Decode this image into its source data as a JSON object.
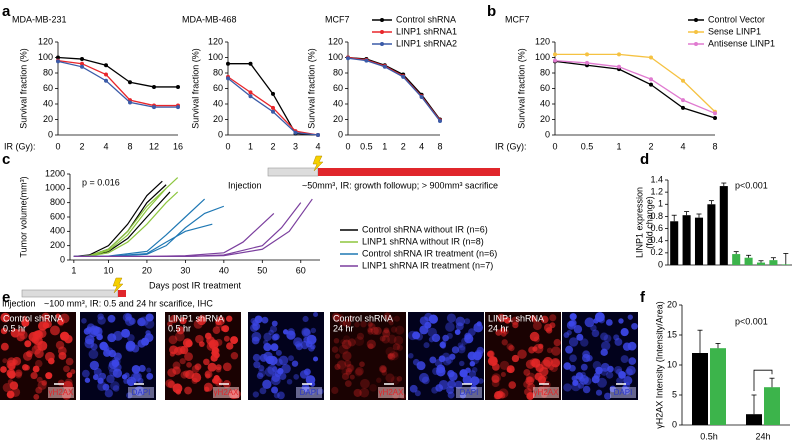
{
  "panel_labels": [
    "a",
    "b",
    "c",
    "d",
    "e",
    "f"
  ],
  "chart_data": [
    {
      "type": "line",
      "title": "MDA-MB-231",
      "ylabel": "Survival fraction (%)",
      "xlabel": "IR (Gy):",
      "categories": [
        "0",
        "2",
        "4",
        "8",
        "12",
        "16"
      ],
      "ylim": [
        0,
        120
      ],
      "yticks": [
        0,
        20,
        40,
        60,
        80,
        100,
        120
      ],
      "series": [
        {
          "name": "Control shRNA",
          "color": "#000000",
          "values": [
            100,
            98,
            90,
            68,
            62,
            62
          ]
        },
        {
          "name": "LINP1 shRNA1",
          "color": "#e8262b",
          "values": [
            96,
            92,
            78,
            45,
            38,
            38
          ]
        },
        {
          "name": "LINP1 shRNA2",
          "color": "#3b5ba8",
          "values": [
            95,
            88,
            70,
            42,
            36,
            36
          ]
        }
      ]
    },
    {
      "type": "line",
      "title": "MDA-MB-468",
      "ylabel": "Survival fraction (%)",
      "categories": [
        "0",
        "1",
        "2",
        "3",
        "4"
      ],
      "ylim": [
        0,
        120
      ],
      "yticks": [
        0,
        20,
        40,
        60,
        80,
        100,
        120
      ],
      "series": [
        {
          "name": "Control shRNA",
          "color": "#000000",
          "values": [
            92,
            92,
            53,
            2,
            0
          ]
        },
        {
          "name": "LINP1 shRNA1",
          "color": "#e8262b",
          "values": [
            75,
            55,
            35,
            5,
            0
          ]
        },
        {
          "name": "LINP1 shRNA2",
          "color": "#3b5ba8",
          "values": [
            73,
            50,
            30,
            3,
            0
          ]
        }
      ]
    },
    {
      "type": "line",
      "title": "MCF7",
      "ylabel": "Survival fraction (%)",
      "legend": "top-right",
      "categories": [
        "0",
        "0.5",
        "1",
        "2",
        "4",
        "8"
      ],
      "ylim": [
        0,
        120
      ],
      "yticks": [
        0,
        20,
        40,
        60,
        80,
        100,
        120
      ],
      "series": [
        {
          "name": "Control shRNA",
          "color": "#000000",
          "values": [
            100,
            98,
            90,
            78,
            52,
            20
          ]
        },
        {
          "name": "LINP1 shRNA1",
          "color": "#e8262b",
          "values": [
            100,
            97,
            89,
            76,
            50,
            19
          ]
        },
        {
          "name": "LINP1 shRNA2",
          "color": "#3b5ba8",
          "values": [
            99,
            96,
            88,
            75,
            49,
            18
          ]
        }
      ]
    },
    {
      "type": "line",
      "title": "MCF7",
      "ylabel": "Survival fraction (%)",
      "xlabel": "IR (Gy):",
      "legend": "top-right",
      "categories": [
        "0",
        "0.5",
        "1",
        "2",
        "4",
        "8"
      ],
      "ylim": [
        0,
        120
      ],
      "yticks": [
        0,
        20,
        40,
        60,
        80,
        100,
        120
      ],
      "series": [
        {
          "name": "Control Vector",
          "color": "#000000",
          "values": [
            95,
            90,
            85,
            65,
            35,
            22
          ]
        },
        {
          "name": "Sense LINP1",
          "color": "#f5c242",
          "values": [
            104,
            104,
            104,
            100,
            70,
            30
          ]
        },
        {
          "name": "Antisense LINP1",
          "color": "#e07ad0",
          "values": [
            96,
            93,
            88,
            72,
            45,
            28
          ]
        }
      ]
    },
    {
      "type": "line",
      "ylabel": "Tumor volume(mm³)",
      "xlabel": "Days post IR treatment",
      "annotation": "p = 0.016",
      "injection_label": "Injection",
      "protocol_label": "~50mm³, IR: growth followup; > 900mm³ sacrifice",
      "legend": "right",
      "xlim": [
        0,
        65
      ],
      "xticks": [
        1,
        10,
        20,
        30,
        40,
        50,
        60
      ],
      "ylim": [
        0,
        1200
      ],
      "yticks": [
        0,
        200,
        400,
        600,
        800,
        1000,
        1200
      ],
      "series": [
        {
          "name": "Control shRNA without IR (n=6)",
          "color": "#000000",
          "curves": [
            {
              "x": [
                1,
                5,
                10,
                15,
                20,
                25
              ],
              "values": [
                50,
                60,
                150,
                400,
                800,
                1050
              ]
            },
            {
              "x": [
                1,
                5,
                10,
                15,
                20,
                24
              ],
              "values": [
                50,
                70,
                200,
                500,
                900,
                1100
              ]
            },
            {
              "x": [
                1,
                5,
                10,
                15,
                20,
                26
              ],
              "values": [
                50,
                55,
                120,
                300,
                600,
                950
              ]
            }
          ]
        },
        {
          "name": "LINP1 shRNA without IR (n=8)",
          "color": "#8dc63f",
          "curves": [
            {
              "x": [
                1,
                5,
                10,
                15,
                20,
                25,
                28
              ],
              "values": [
                50,
                60,
                130,
                350,
                700,
                1000,
                1150
              ]
            },
            {
              "x": [
                1,
                5,
                10,
                15,
                20,
                25,
                28
              ],
              "values": [
                50,
                55,
                100,
                250,
                500,
                800,
                950
              ]
            },
            {
              "x": [
                1,
                5,
                10,
                15,
                20,
                25
              ],
              "values": [
                50,
                60,
                150,
                400,
                750,
                1000
              ]
            }
          ]
        },
        {
          "name": "Control shRNA IR treatment (n=6)",
          "color": "#1f78b4",
          "curves": [
            {
              "x": [
                1,
                10,
                20,
                25,
                30,
                35,
                40
              ],
              "values": [
                50,
                50,
                80,
                200,
                450,
                650,
                750
              ]
            },
            {
              "x": [
                1,
                10,
                20,
                25,
                30,
                35
              ],
              "values": [
                50,
                55,
                120,
                350,
                600,
                850
              ]
            },
            {
              "x": [
                1,
                10,
                20,
                25,
                30,
                37
              ],
              "values": [
                50,
                50,
                90,
                250,
                400,
                500
              ]
            }
          ]
        },
        {
          "name": "LINP1 shRNA IR treatment (n=7)",
          "color": "#7b3f9e",
          "curves": [
            {
              "x": [
                1,
                20,
                30,
                40,
                45,
                50,
                53
              ],
              "values": [
                50,
                50,
                60,
                100,
                250,
                500,
                650
              ]
            },
            {
              "x": [
                1,
                20,
                30,
                40,
                50,
                55,
                60
              ],
              "values": [
                50,
                50,
                50,
                70,
                200,
                450,
                800
              ]
            },
            {
              "x": [
                1,
                20,
                30,
                40,
                50,
                57,
                63
              ],
              "values": [
                50,
                50,
                50,
                60,
                150,
                400,
                850
              ]
            }
          ]
        }
      ]
    },
    {
      "type": "bar",
      "ylabel": [
        "LINP1 expression",
        "(fold change)"
      ],
      "annotation": "p<0.001",
      "values": [
        0.72,
        0.82,
        0.78,
        1.0,
        1.3,
        0.18,
        0.12,
        0.04,
        0.08,
        0.01
      ],
      "errors": [
        0.1,
        0.06,
        0.06,
        0.06,
        0.05,
        0.04,
        0.04,
        0.03,
        0.04,
        0.18
      ],
      "colors": [
        "#000000",
        "#000000",
        "#000000",
        "#000000",
        "#000000",
        "#3cb44b",
        "#3cb44b",
        "#3cb44b",
        "#3cb44b",
        "#3cb44b"
      ],
      "ylim": [
        0,
        1.4
      ],
      "yticks": [
        0,
        0.2,
        0.4,
        0.6,
        0.8,
        1,
        1.2,
        1.4
      ]
    },
    {
      "type": "bar",
      "ylabel": "γH2AX Intensity (Intensity/Area)",
      "annotation": "p<0.001",
      "categories": [
        "0.5h",
        "24h"
      ],
      "ylim": [
        0,
        20
      ],
      "yticks": [
        0,
        5,
        10,
        15,
        20
      ],
      "series": [
        {
          "color": "#000000",
          "values": [
            12,
            1.8
          ],
          "errors": [
            3.8,
            3.2
          ]
        },
        {
          "color": "#3cb44b",
          "values": [
            12.8,
            6.3
          ],
          "errors": [
            0.8,
            1.5
          ]
        }
      ]
    }
  ],
  "panel_e": {
    "injection_label": "Injection",
    "protocol_label": "~100 mm³, IR: 0.5 and 24 hr scarifice, IHC",
    "tiles": [
      {
        "lines": [
          "Control shRNA",
          "0.5 hr"
        ],
        "stain": "γH2AX"
      },
      {
        "stain": "DAPI"
      },
      {
        "lines": [
          "LINP1 shRNA",
          "0.5 hr"
        ],
        "stain": "γH2AX"
      },
      {
        "stain": "DAPI"
      },
      {
        "lines": [
          "Control shRNA",
          "24 hr"
        ],
        "stain": "γH2AX"
      },
      {
        "stain": "DAPI"
      },
      {
        "lines": [
          "LINP1 shRNA",
          "24 hr"
        ],
        "stain": "γH2AX"
      },
      {
        "stain": "DAPI"
      }
    ]
  }
}
